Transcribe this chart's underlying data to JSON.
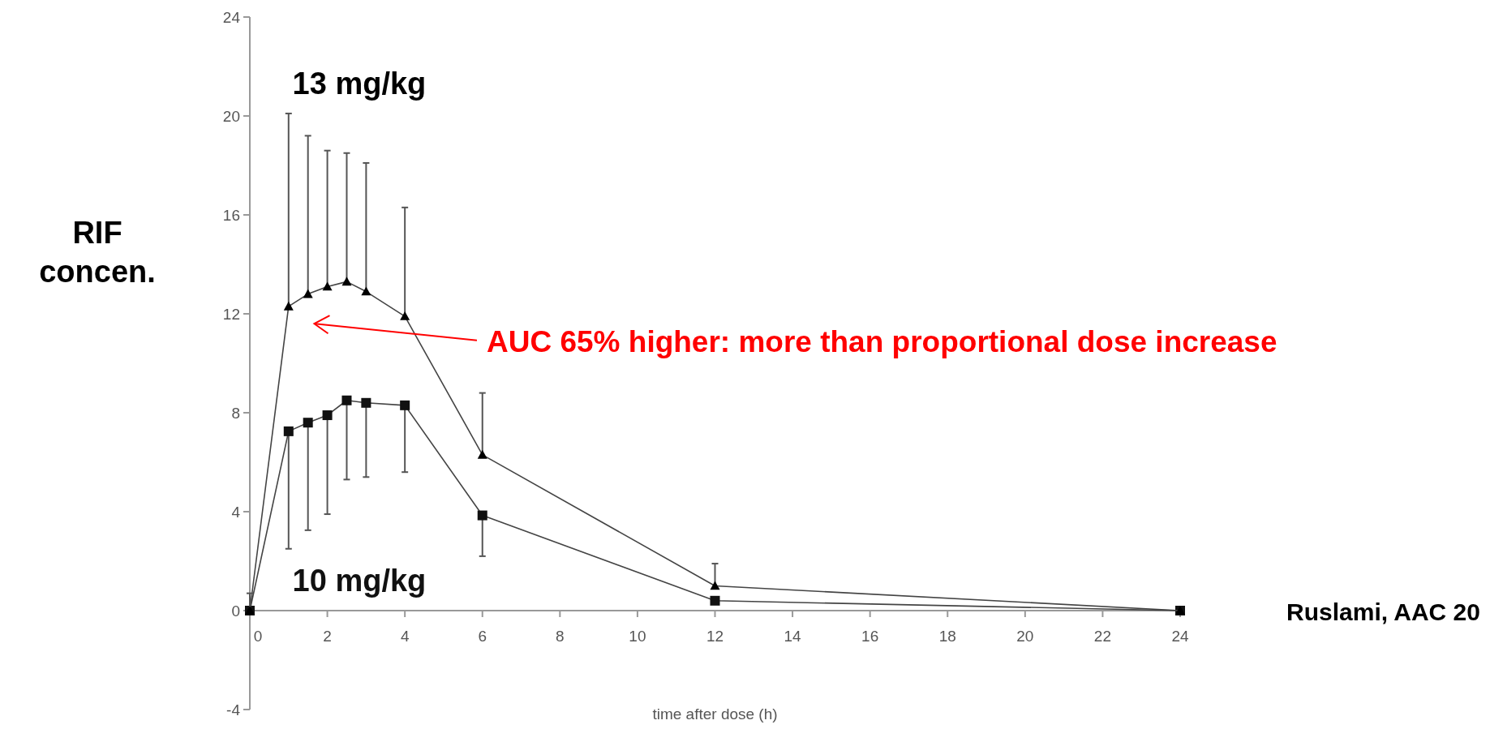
{
  "chart_data": {
    "type": "line",
    "xlabel": "time after dose (h)",
    "ylabel": "RIF concen.",
    "xlim": [
      0,
      24
    ],
    "xticks": [
      0,
      2,
      4,
      6,
      8,
      10,
      12,
      14,
      16,
      18,
      20,
      22,
      24
    ],
    "ylim": [
      -4,
      24
    ],
    "yticks": [
      -4,
      0,
      4,
      8,
      12,
      16,
      20,
      24
    ],
    "line_style": "solid",
    "series": [
      {
        "name": "13 mg/kg",
        "color": "#000000",
        "marker": "triangle",
        "x": [
          0,
          1,
          1.5,
          2,
          2.5,
          3,
          4,
          6,
          12,
          24
        ],
        "values": [
          0,
          12.3,
          12.8,
          13.1,
          13.3,
          12.9,
          11.9,
          6.3,
          1.0,
          0
        ],
        "errors": [
          [
            0,
            0.7
          ],
          [
            12.3,
            20.1
          ],
          [
            12.8,
            19.2
          ],
          [
            13.1,
            18.6
          ],
          [
            13.3,
            18.5
          ],
          [
            12.9,
            18.1
          ],
          [
            11.9,
            16.3
          ],
          [
            6.3,
            8.8
          ],
          [
            1.0,
            1.9
          ],
          null
        ]
      },
      {
        "name": "10 mg/kg",
        "color": "#111111",
        "marker": "square",
        "x": [
          0,
          1,
          1.5,
          2,
          2.5,
          3,
          4,
          6,
          12,
          24
        ],
        "values": [
          0,
          7.25,
          7.6,
          7.9,
          8.5,
          8.4,
          8.3,
          3.85,
          0.4,
          0
        ],
        "errors": [
          null,
          [
            2.5,
            7.25
          ],
          [
            3.25,
            7.6
          ],
          [
            3.9,
            7.9
          ],
          [
            5.3,
            8.5
          ],
          [
            5.4,
            8.4
          ],
          [
            5.6,
            8.3
          ],
          [
            2.2,
            3.85
          ],
          null,
          null
        ]
      }
    ],
    "annotations": [
      "AUC 65% higher: more than proportional dose increase",
      "Ruslami, AAC 20"
    ]
  }
}
